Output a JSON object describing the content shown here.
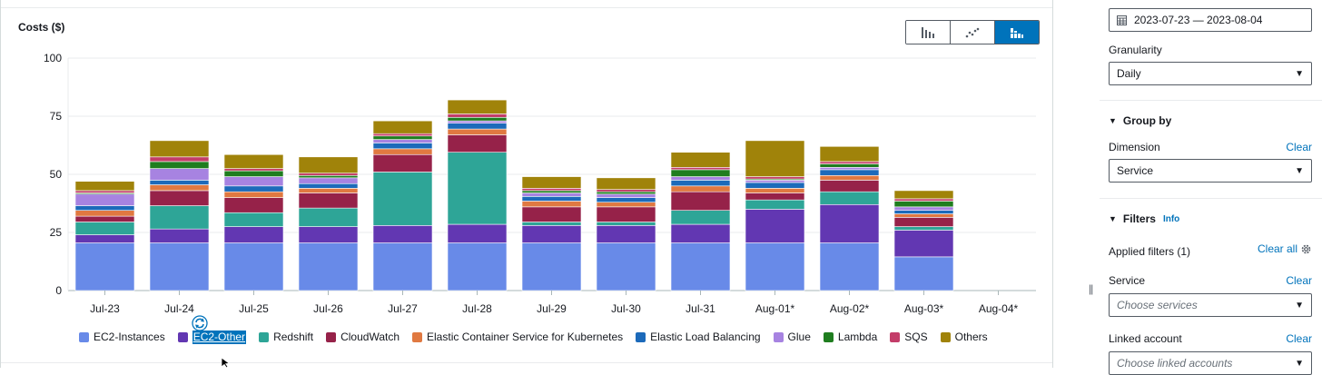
{
  "chart_panel": {
    "title": "Costs ($)",
    "view_buttons": [
      {
        "name": "bar-chart-view-button",
        "icon": "bar-chart-icon",
        "active": false
      },
      {
        "name": "line-chart-view-button",
        "icon": "line-chart-icon",
        "active": false
      },
      {
        "name": "stacked-bar-view-button",
        "icon": "stacked-bar-chart-icon",
        "active": true
      }
    ],
    "accent_color": "#0073bb"
  },
  "chart_data": {
    "type": "bar",
    "stacked": true,
    "ylabel": "Costs ($)",
    "ylim": [
      0,
      100
    ],
    "yticks": [
      0,
      25,
      50,
      75,
      100
    ],
    "grid": true,
    "legend_position": "bottom",
    "categories": [
      "Jul-23",
      "Jul-24",
      "Jul-25",
      "Jul-26",
      "Jul-27",
      "Jul-28",
      "Jul-29",
      "Jul-30",
      "Jul-31",
      "Aug-01*",
      "Aug-02*",
      "Aug-03*",
      "Aug-04*"
    ],
    "series": [
      {
        "name": "EC2-Instances",
        "color": "#688ae8",
        "values": [
          20.5,
          20.5,
          20.5,
          20.5,
          20.5,
          20.5,
          20.5,
          20.5,
          20.5,
          20.5,
          20.5,
          14.5,
          0
        ]
      },
      {
        "name": "EC2-Other",
        "color": "#6237b2",
        "values": [
          3.5,
          6,
          7,
          7,
          7.5,
          8,
          7.5,
          7.5,
          8,
          14.5,
          16.5,
          11.5,
          0
        ]
      },
      {
        "name": "Redshift",
        "color": "#2ea597",
        "values": [
          5.5,
          10,
          6,
          8,
          23,
          31,
          1.5,
          1.5,
          6,
          4,
          5.5,
          1.5,
          0
        ]
      },
      {
        "name": "CloudWatch",
        "color": "#962249",
        "values": [
          2.5,
          6.5,
          6.5,
          6.5,
          7.5,
          7.5,
          6.5,
          6.5,
          8,
          3,
          5,
          4,
          0
        ]
      },
      {
        "name": "Elastic Container Service for Kubernetes",
        "color": "#e07941",
        "values": [
          2.5,
          2.5,
          2.5,
          2,
          2.5,
          2.5,
          2.5,
          2,
          2.5,
          2,
          2,
          1.5,
          0
        ]
      },
      {
        "name": "Elastic Load Balancing",
        "color": "#1c6aba",
        "values": [
          2,
          2,
          2.5,
          2,
          2.5,
          2.5,
          2,
          2,
          2.5,
          2.5,
          2.5,
          1.5,
          0
        ]
      },
      {
        "name": "Glue",
        "color": "#a783e1",
        "values": [
          5,
          5,
          4,
          2.5,
          1.5,
          1,
          1.5,
          1.5,
          1.5,
          1,
          1,
          1.5,
          0
        ]
      },
      {
        "name": "Lambda",
        "color": "#1f7d1f",
        "values": [
          0.5,
          3,
          2.5,
          1,
          1.5,
          1.5,
          1,
          1,
          3,
          0.5,
          1.5,
          2.5,
          0
        ]
      },
      {
        "name": "SQS",
        "color": "#c33d69",
        "values": [
          1,
          2,
          1,
          1,
          1,
          1.5,
          1,
          1,
          1,
          1,
          1,
          1,
          0
        ]
      },
      {
        "name": "Others",
        "color": "#a0830a",
        "values": [
          4,
          7,
          6,
          7,
          5.5,
          6,
          5,
          5,
          6.5,
          15.5,
          6.5,
          3.5,
          0
        ]
      }
    ]
  },
  "legend": {
    "selected": "EC2-Other"
  },
  "sidebar": {
    "date_range": {
      "icon": "calendar-icon",
      "value": "2023-07-23 — 2023-08-04"
    },
    "granularity": {
      "label": "Granularity",
      "value": "Daily"
    },
    "group_by": {
      "header": "Group by",
      "dimension_label": "Dimension",
      "clear": "Clear",
      "dimension_value": "Service"
    },
    "filters": {
      "header": "Filters",
      "info": "Info",
      "applied": "Applied filters (1)",
      "clear_all": "Clear all",
      "service_label": "Service",
      "service_clear": "Clear",
      "service_placeholder": "Choose services",
      "linked_label": "Linked account",
      "linked_clear": "Clear",
      "linked_placeholder": "Choose linked accounts"
    }
  }
}
